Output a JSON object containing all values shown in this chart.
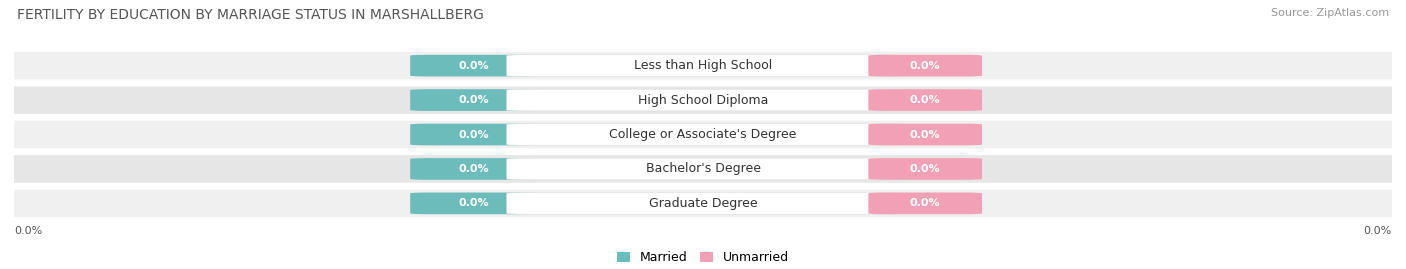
{
  "title": "FERTILITY BY EDUCATION BY MARRIAGE STATUS IN MARSHALLBERG",
  "source": "Source: ZipAtlas.com",
  "categories": [
    "Less than High School",
    "High School Diploma",
    "College or Associate's Degree",
    "Bachelor's Degree",
    "Graduate Degree"
  ],
  "married_values": [
    0.0,
    0.0,
    0.0,
    0.0,
    0.0
  ],
  "unmarried_values": [
    0.0,
    0.0,
    0.0,
    0.0,
    0.0
  ],
  "married_color": "#6CBCBC",
  "unmarried_color": "#F2A0B5",
  "row_bg_light": "#F0F0F0",
  "row_bg_dark": "#E6E6E6",
  "title_fontsize": 10,
  "source_fontsize": 8,
  "label_fontsize": 8,
  "category_fontsize": 9,
  "legend_fontsize": 9,
  "axis_label_left": "0.0%",
  "axis_label_right": "0.0%"
}
